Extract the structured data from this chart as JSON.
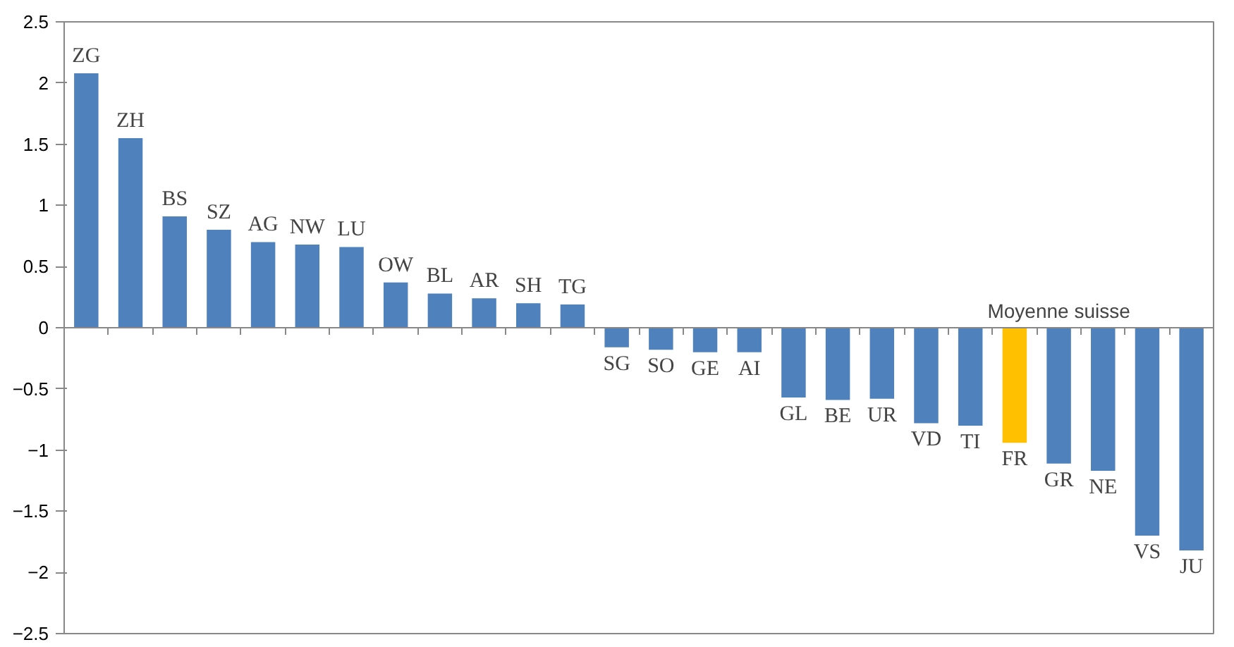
{
  "chart_data": {
    "type": "bar",
    "categories": [
      "ZG",
      "ZH",
      "BS",
      "SZ",
      "AG",
      "NW",
      "LU",
      "OW",
      "BL",
      "AR",
      "SH",
      "TG",
      "SG",
      "SO",
      "GE",
      "AI",
      "GL",
      "BE",
      "UR",
      "VD",
      "TI",
      "FR",
      "GR",
      "NE",
      "VS",
      "JU"
    ],
    "values": [
      2.08,
      1.55,
      0.91,
      0.8,
      0.7,
      0.68,
      0.66,
      0.37,
      0.28,
      0.24,
      0.2,
      0.19,
      -0.16,
      -0.18,
      -0.2,
      -0.2,
      -0.57,
      -0.59,
      -0.58,
      -0.78,
      -0.8,
      -0.94,
      -1.11,
      -1.17,
      -1.7,
      -1.82
    ],
    "colors": [
      "#4f81bd",
      "#4f81bd",
      "#4f81bd",
      "#4f81bd",
      "#4f81bd",
      "#4f81bd",
      "#4f81bd",
      "#4f81bd",
      "#4f81bd",
      "#4f81bd",
      "#4f81bd",
      "#4f81bd",
      "#4f81bd",
      "#4f81bd",
      "#4f81bd",
      "#4f81bd",
      "#4f81bd",
      "#4f81bd",
      "#4f81bd",
      "#4f81bd",
      "#4f81bd",
      "#ffc000",
      "#4f81bd",
      "#4f81bd",
      "#4f81bd",
      "#4f81bd"
    ],
    "ylim": [
      -2.5,
      2.5
    ],
    "yticks": [
      -2.5,
      -2,
      -1.5,
      -1,
      -0.5,
      0,
      0.5,
      1,
      1.5,
      2,
      2.5
    ],
    "tick_labels": "y",
    "grid": false,
    "annotations": [
      {
        "text": "Moyenne suisse",
        "x": "GR",
        "y": 0
      }
    ]
  }
}
